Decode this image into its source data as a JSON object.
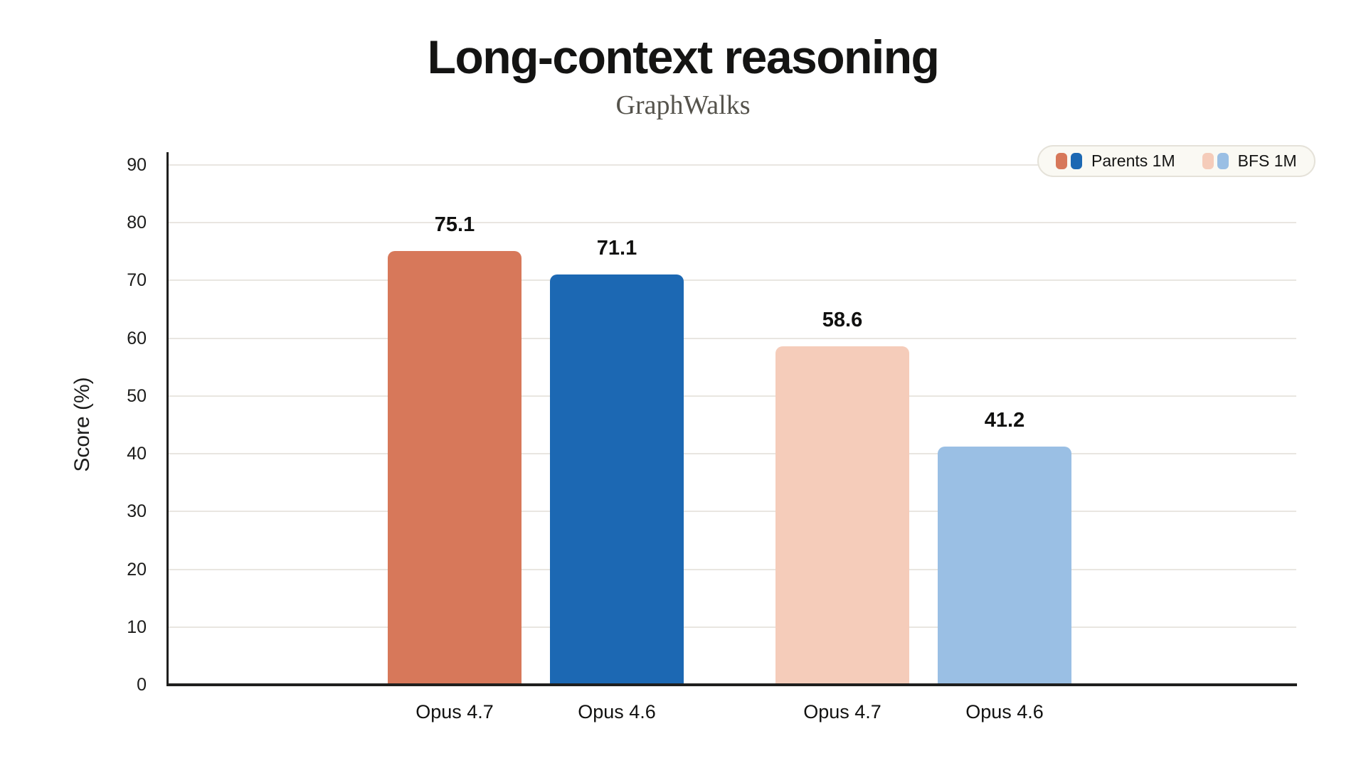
{
  "chart_data": {
    "type": "bar",
    "title": "Long-context reasoning",
    "subtitle": "GraphWalks",
    "ylabel": "Score (%)",
    "ylim": [
      0,
      90
    ],
    "ytick_step": 10,
    "grid": "horizontal",
    "legend_position": "top-right",
    "bars": [
      {
        "category": "Opus 4.7",
        "series": "Parents 1M",
        "value": 75.1,
        "value_label": "75.1",
        "color": "#D7785A"
      },
      {
        "category": "Opus 4.6",
        "series": "Parents 1M",
        "value": 71.1,
        "value_label": "71.1",
        "color": "#1C68B3"
      },
      {
        "category": "Opus 4.7",
        "series": "BFS 1M",
        "value": 58.6,
        "value_label": "58.6",
        "color": "#F5CCBA"
      },
      {
        "category": "Opus 4.6",
        "series": "BFS 1M",
        "value": 41.2,
        "value_label": "41.2",
        "color": "#9ABFE4"
      }
    ],
    "legend": {
      "entries": [
        {
          "label": "Parents 1M",
          "swatch_colors": [
            "#D7785A",
            "#1C68B3"
          ]
        },
        {
          "label": "BFS 1M",
          "swatch_colors": [
            "#F5CCBA",
            "#9ABFE4"
          ]
        }
      ]
    },
    "colors": {
      "background": "#ffffff",
      "axis": "#1f1f1e",
      "gridline": "#e9e6e1",
      "title": "#141413",
      "subtitle": "#55534c",
      "tick_label": "#1c1c1b",
      "legend_bg": "#faf9f3",
      "legend_border": "#e5e2d9"
    }
  }
}
